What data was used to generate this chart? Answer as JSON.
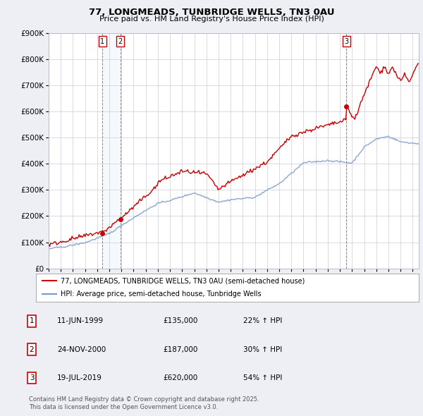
{
  "title": "77, LONGMEADS, TUNBRIDGE WELLS, TN3 0AU",
  "subtitle": "Price paid vs. HM Land Registry's House Price Index (HPI)",
  "legend_line1": "77, LONGMEADS, TUNBRIDGE WELLS, TN3 0AU (semi-detached house)",
  "legend_line2": "HPI: Average price, semi-detached house, Tunbridge Wells",
  "footer": "Contains HM Land Registry data © Crown copyright and database right 2025.\nThis data is licensed under the Open Government Licence v3.0.",
  "table": [
    {
      "num": "1",
      "date": "11-JUN-1999",
      "price": "£135,000",
      "hpi": "22% ↑ HPI"
    },
    {
      "num": "2",
      "date": "24-NOV-2000",
      "price": "£187,000",
      "hpi": "30% ↑ HPI"
    },
    {
      "num": "3",
      "date": "19-JUL-2019",
      "price": "£620,000",
      "hpi": "54% ↑ HPI"
    }
  ],
  "sale_dates": [
    1999.44,
    2000.9,
    2019.54
  ],
  "sale_prices": [
    135000,
    187000,
    620000
  ],
  "sale_labels": [
    "1",
    "2",
    "3"
  ],
  "ylim": [
    0,
    900000
  ],
  "xlim_start": 1995.0,
  "xlim_end": 2025.5,
  "background_color": "#eeeef5",
  "plot_bg": "#ffffff",
  "red_color": "#cc0000",
  "blue_color": "#7799cc",
  "sale_vline_color": "#cc0000",
  "shade_color": "#dde8f5"
}
